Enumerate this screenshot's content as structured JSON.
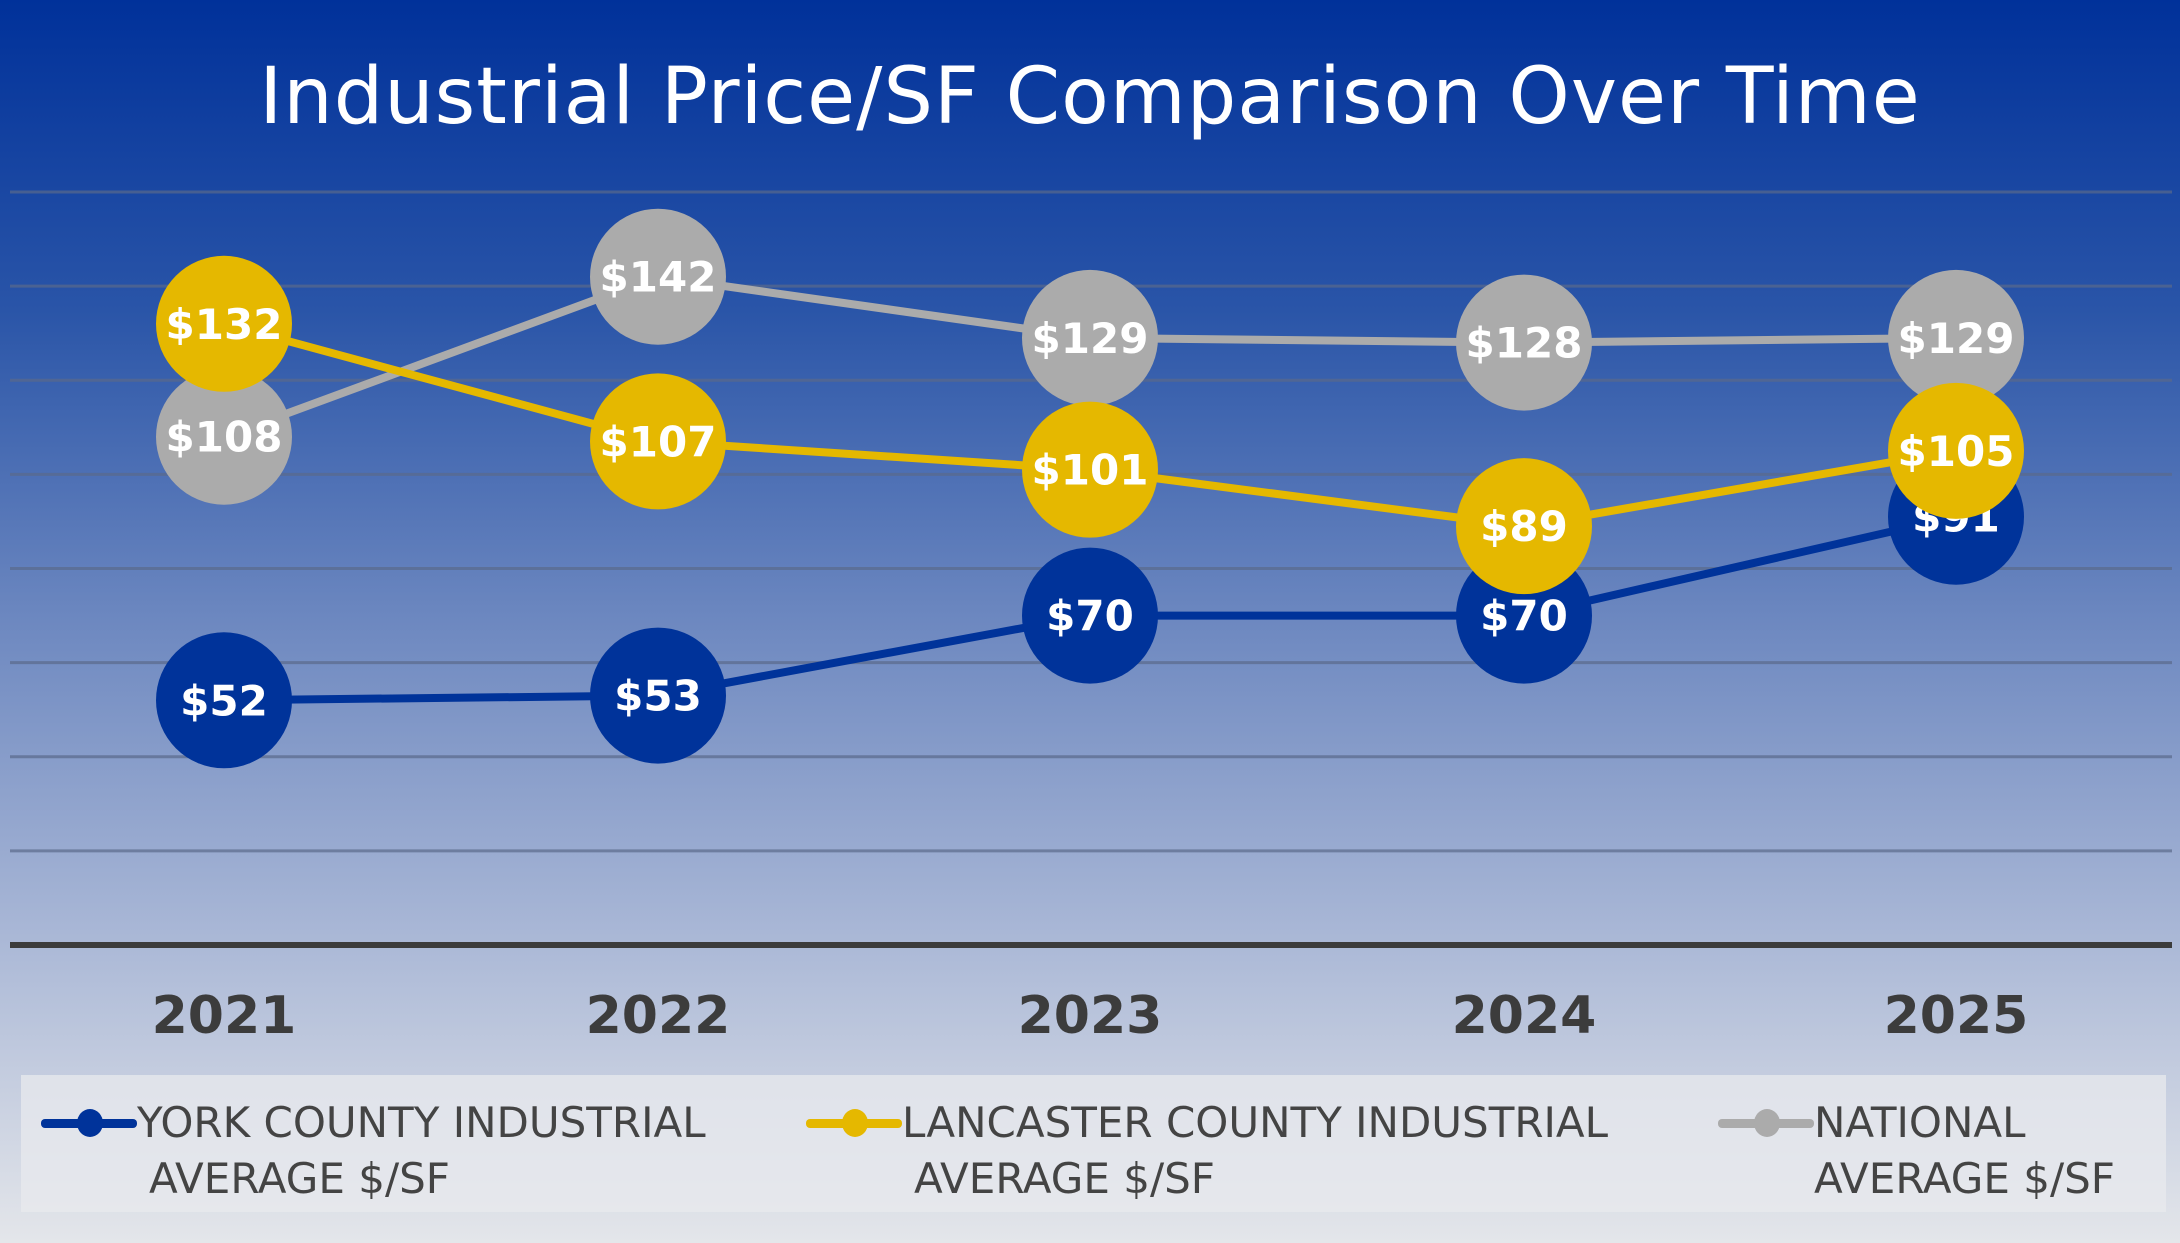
{
  "chart_data": {
    "type": "line",
    "title": "Industrial Price/SF Comparison Over Time",
    "categories": [
      "2021",
      "2022",
      "2023",
      "2024",
      "2025"
    ],
    "ylim": [
      0,
      160
    ],
    "grid": true,
    "legend_position": "bottom",
    "series": [
      {
        "name": "YORK COUNTY INDUSTRIAL AVERAGE $/SF",
        "name_line1": "YORK COUNTY INDUSTRIAL",
        "name_line2": "AVERAGE $/SF",
        "color": "#00339a",
        "values": [
          52,
          53,
          70,
          70,
          91
        ],
        "labels": [
          "$52",
          "$53",
          "$70",
          "$70",
          "$91"
        ]
      },
      {
        "name": "LANCASTER COUNTY INDUSTRIAL AVERAGE $/SF",
        "name_line1": "LANCASTER COUNTY INDUSTRIAL",
        "name_line2": "AVERAGE $/SF",
        "color": "#e5b800",
        "values": [
          132,
          107,
          101,
          89,
          105
        ],
        "labels": [
          "$132",
          "$107",
          "$101",
          "$89",
          "$105"
        ]
      },
      {
        "name": "NATIONAL AVERAGE $/SF",
        "name_line1": "NATIONAL",
        "name_line2": "AVERAGE $/SF",
        "color": "#ababab",
        "values": [
          108,
          142,
          129,
          128,
          129
        ],
        "labels": [
          "$108",
          "$142",
          "$129",
          "$128",
          "$129"
        ]
      }
    ]
  }
}
